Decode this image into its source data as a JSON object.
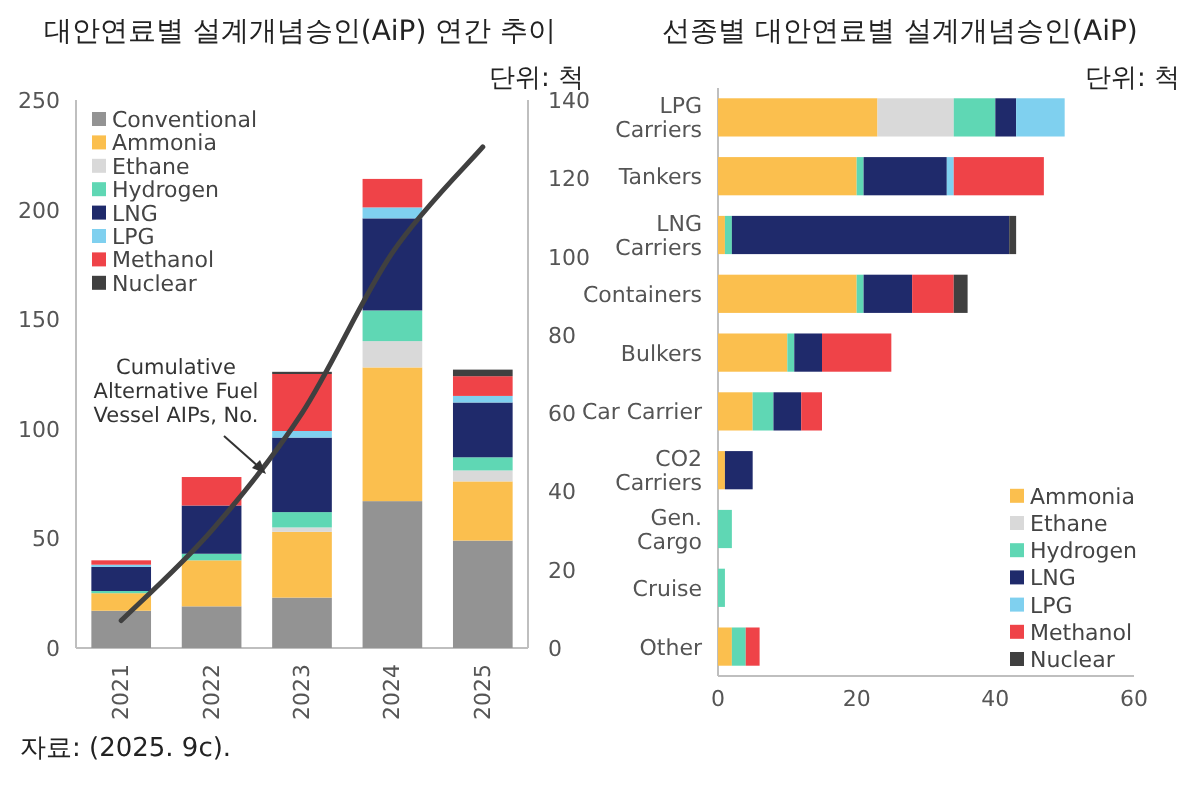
{
  "chart_data": [
    {
      "type": "bar",
      "title": "대안연료별 설계개념승인(AiP) 연간 추이",
      "subtitle": "단위: 척",
      "stacked": true,
      "legend": "top left",
      "categories": [
        "2021",
        "2022",
        "2023",
        "2024",
        "2025"
      ],
      "ylim": [
        0,
        250
      ],
      "yticks": [
        0,
        50,
        100,
        150,
        200,
        250
      ],
      "y2lim": [
        0,
        140
      ],
      "y2ticks": [
        0,
        20,
        40,
        60,
        80,
        100,
        120,
        140
      ],
      "series": [
        {
          "name": "Conventional",
          "color": "#939393",
          "values": [
            17,
            19,
            23,
            67,
            49
          ]
        },
        {
          "name": "Ammonia",
          "color": "#fbbf4e",
          "values": [
            8,
            21,
            30,
            61,
            27
          ]
        },
        {
          "name": "Ethane",
          "color": "#d9d9d9",
          "values": [
            null,
            null,
            2,
            12,
            5
          ]
        },
        {
          "name": "Hydrogen",
          "color": "#5fd7b4",
          "values": [
            1,
            3,
            7,
            14,
            6
          ]
        },
        {
          "name": "LNG",
          "color": "#1f2a6b",
          "values": [
            11,
            22,
            34,
            42,
            25
          ]
        },
        {
          "name": "LPG",
          "color": "#7fd0ef",
          "values": [
            1,
            null,
            3,
            5,
            3
          ]
        },
        {
          "name": "Methanol",
          "color": "#ef4348",
          "values": [
            2,
            13,
            26,
            13,
            9
          ]
        },
        {
          "name": "Nuclear",
          "color": "#404040",
          "values": [
            null,
            null,
            1,
            null,
            3
          ]
        },
        {
          "type": "line",
          "axis": "y2",
          "name": "Cumulative\nAlternative Fuel\nVessel AIPs, No.",
          "color": "#404040",
          "values": [
            7,
            30,
            60,
            101,
            128
          ]
        }
      ],
      "annotations": [
        "자료: (2025. 9c)."
      ]
    },
    {
      "type": "bar",
      "title": "선종별 대안연료별 설계개념승인(AiP)",
      "subtitle": "단위: 척",
      "stacked": true,
      "orientation": "horizontal",
      "legend": "bottom right",
      "categories": [
        "LPG\nCarriers",
        "Tankers",
        "LNG\nCarriers",
        "Containers",
        "Bulkers",
        "Car Carrier",
        "CO2\nCarriers",
        "Gen.\nCargo",
        "Cruise",
        "Other"
      ],
      "xlim": [
        0,
        60
      ],
      "xticks": [
        0,
        20,
        40,
        60
      ],
      "series": [
        {
          "name": "Ammonia",
          "color": "#fbbf4e",
          "values": [
            23,
            20,
            1,
            20,
            10,
            5,
            1,
            null,
            null,
            2
          ]
        },
        {
          "name": "Ethane",
          "color": "#d9d9d9",
          "values": [
            11,
            null,
            null,
            null,
            null,
            null,
            null,
            null,
            null,
            null
          ]
        },
        {
          "name": "Hydrogen",
          "color": "#5fd7b4",
          "values": [
            6,
            1,
            1,
            1,
            1,
            3,
            null,
            2,
            1,
            2
          ]
        },
        {
          "name": "LNG",
          "color": "#1f2a6b",
          "values": [
            3,
            12,
            40,
            7,
            4,
            4,
            4,
            null,
            null,
            null
          ]
        },
        {
          "name": "LPG",
          "color": "#7fd0ef",
          "values": [
            7,
            1,
            null,
            null,
            null,
            null,
            null,
            null,
            null,
            null
          ]
        },
        {
          "name": "Methanol",
          "color": "#ef4348",
          "values": [
            null,
            13,
            null,
            6,
            10,
            3,
            null,
            null,
            null,
            2
          ]
        },
        {
          "name": "Nuclear",
          "color": "#404040",
          "values": [
            null,
            null,
            1,
            2,
            null,
            null,
            null,
            null,
            null,
            null
          ]
        }
      ]
    }
  ]
}
